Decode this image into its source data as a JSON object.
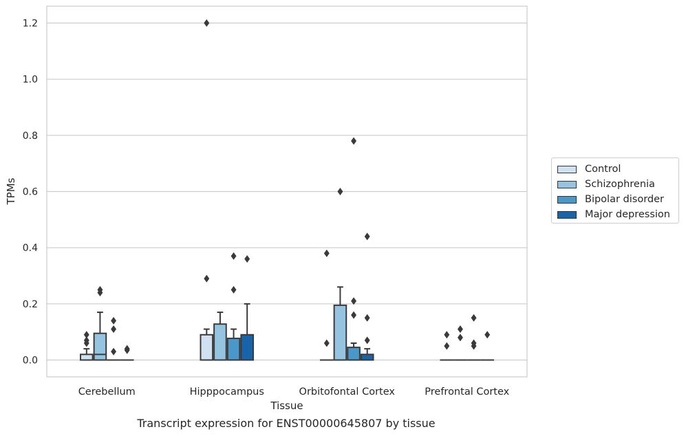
{
  "caption": "Transcript expression for ENST00000645807 by tissue",
  "chart_data": {
    "type": "box",
    "xlabel": "Tissue",
    "ylabel": "TPMs",
    "ylim": [
      -0.06,
      1.26
    ],
    "yticks": [
      "0.0",
      "0.2",
      "0.4",
      "0.6",
      "0.8",
      "1.0",
      "1.2"
    ],
    "grid": true,
    "legend_position": "right",
    "categories": [
      "Cerebellum",
      "Hipppocampus",
      "Orbitofontal Cortex",
      "Prefrontal Cortex"
    ],
    "series": [
      {
        "name": "Control",
        "color": "#d0e1f2",
        "boxes": [
          {
            "q1": 0.0,
            "median": 0.0,
            "q3": 0.02,
            "whisker_low": 0.0,
            "whisker_high": 0.04,
            "outliers": [
              0.06,
              0.07,
              0.09
            ]
          },
          {
            "q1": 0.0,
            "median": 0.0,
            "q3": 0.09,
            "whisker_low": 0.0,
            "whisker_high": 0.11,
            "outliers": [
              0.29,
              1.2
            ]
          },
          {
            "q1": 0.0,
            "median": 0.0,
            "q3": 0.0,
            "whisker_low": 0.0,
            "whisker_high": 0.0,
            "outliers": [
              0.06,
              0.38
            ]
          },
          {
            "q1": 0.0,
            "median": 0.0,
            "q3": 0.0,
            "whisker_low": 0.0,
            "whisker_high": 0.0,
            "outliers": [
              0.05,
              0.09
            ]
          }
        ]
      },
      {
        "name": "Schizophrenia",
        "color": "#94c4df",
        "boxes": [
          {
            "q1": 0.0,
            "median": 0.02,
            "q3": 0.095,
            "whisker_low": 0.0,
            "whisker_high": 0.17,
            "outliers": [
              0.24,
              0.25
            ]
          },
          {
            "q1": 0.0,
            "median": 0.0,
            "q3": 0.128,
            "whisker_low": 0.0,
            "whisker_high": 0.17,
            "outliers": []
          },
          {
            "q1": 0.0,
            "median": 0.0,
            "q3": 0.195,
            "whisker_low": 0.0,
            "whisker_high": 0.26,
            "outliers": [
              0.6
            ]
          },
          {
            "q1": 0.0,
            "median": 0.0,
            "q3": 0.0,
            "whisker_low": 0.0,
            "whisker_high": 0.0,
            "outliers": [
              0.08,
              0.11
            ]
          }
        ]
      },
      {
        "name": "Bipolar disorder",
        "color": "#4a98c9",
        "boxes": [
          {
            "q1": 0.0,
            "median": 0.0,
            "q3": 0.0,
            "whisker_low": 0.0,
            "whisker_high": 0.0,
            "outliers": [
              0.03,
              0.11,
              0.14
            ]
          },
          {
            "q1": 0.0,
            "median": 0.0,
            "q3": 0.077,
            "whisker_low": 0.0,
            "whisker_high": 0.11,
            "outliers": [
              0.25,
              0.37
            ]
          },
          {
            "q1": 0.0,
            "median": 0.0,
            "q3": 0.045,
            "whisker_low": 0.0,
            "whisker_high": 0.06,
            "outliers": [
              0.16,
              0.21,
              0.78
            ]
          },
          {
            "q1": 0.0,
            "median": 0.0,
            "q3": 0.0,
            "whisker_low": 0.0,
            "whisker_high": 0.0,
            "outliers": [
              0.05,
              0.06,
              0.15
            ]
          }
        ]
      },
      {
        "name": "Major depression",
        "color": "#1764ab",
        "boxes": [
          {
            "q1": 0.0,
            "median": 0.0,
            "q3": 0.0,
            "whisker_low": 0.0,
            "whisker_high": 0.0,
            "outliers": [
              0.035,
              0.04
            ]
          },
          {
            "q1": 0.0,
            "median": 0.0,
            "q3": 0.09,
            "whisker_low": 0.0,
            "whisker_high": 0.2,
            "outliers": [
              0.36
            ]
          },
          {
            "q1": 0.0,
            "median": 0.0,
            "q3": 0.02,
            "whisker_low": 0.0,
            "whisker_high": 0.04,
            "outliers": [
              0.07,
              0.15,
              0.44
            ]
          },
          {
            "q1": 0.0,
            "median": 0.0,
            "q3": 0.0,
            "whisker_low": 0.0,
            "whisker_high": 0.0,
            "outliers": [
              0.09
            ]
          }
        ]
      }
    ]
  }
}
